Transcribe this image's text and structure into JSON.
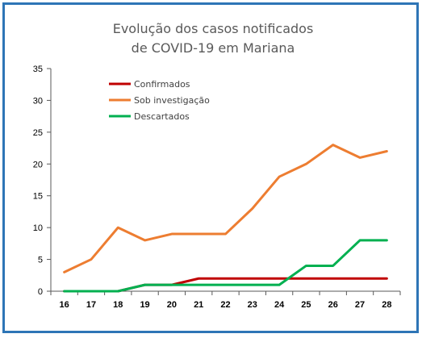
{
  "chart_data": {
    "type": "line",
    "title": [
      "Evolução dos casos notificados",
      "de COVID-19 em Mariana"
    ],
    "xlabel": "",
    "ylabel": "",
    "categories": [
      "16",
      "17",
      "18",
      "19",
      "20",
      "21",
      "22",
      "23",
      "24",
      "25",
      "26",
      "27",
      "28"
    ],
    "ylim": [
      0,
      35
    ],
    "yticks": [
      "0",
      "5",
      "10",
      "15",
      "20",
      "25",
      "30",
      "35"
    ],
    "grid": false,
    "legend_position": "top-left",
    "series": [
      {
        "name": "Confirmados",
        "color": "#c00000",
        "values": [
          0,
          0,
          0,
          1,
          1,
          2,
          2,
          2,
          2,
          2,
          2,
          2,
          2
        ]
      },
      {
        "name": "Sob investigação",
        "color": "#ed7d31",
        "values": [
          3,
          5,
          10,
          8,
          9,
          9,
          9,
          13,
          18,
          20,
          23,
          21,
          22
        ]
      },
      {
        "name": "Descartados",
        "color": "#00b050",
        "values": [
          0,
          0,
          0,
          1,
          1,
          1,
          1,
          1,
          1,
          4,
          4,
          8,
          8
        ]
      }
    ]
  }
}
